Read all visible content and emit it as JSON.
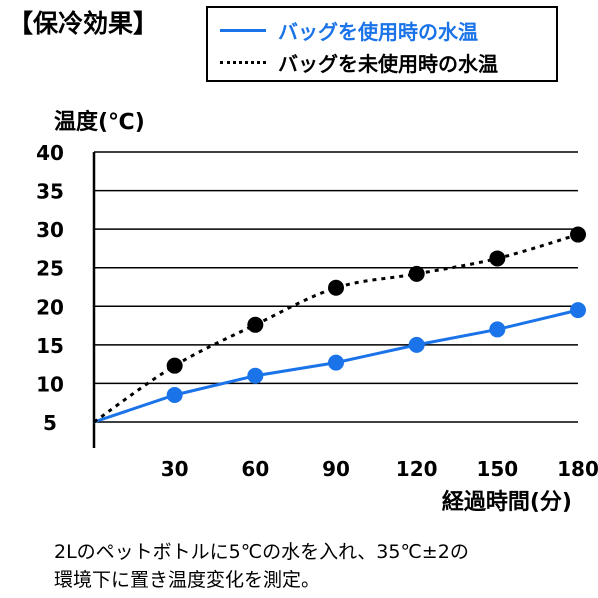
{
  "title": "【保冷効果】",
  "note": {
    "line1": "2Lのペットボトルに5℃の水を入れ、35℃±2の",
    "line2": "環境下に置き温度変化を測定。"
  },
  "colors": {
    "series_with_bag": "#1a73e8",
    "series_without_bag": "#000000",
    "grid": "#000000"
  },
  "chart_data": {
    "type": "line",
    "xlabel": "経過時間(分)",
    "ylabel": "温度(℃)",
    "xlim": [
      0,
      180
    ],
    "ylim": [
      5,
      40
    ],
    "x_ticks": [
      "30",
      "60",
      "90",
      "120",
      "150",
      "180"
    ],
    "y_ticks": [
      "5",
      "10",
      "15",
      "20",
      "25",
      "30",
      "35",
      "40"
    ],
    "grid": true,
    "legend_position": "top-right",
    "x": [
      0,
      30,
      60,
      90,
      120,
      150,
      180
    ],
    "series": [
      {
        "name": "バッグを使用時の水温",
        "style": "solid",
        "values": [
          5,
          8.5,
          11,
          12.7,
          15,
          17,
          19.5
        ]
      },
      {
        "name": "バッグを未使用時の水温",
        "style": "dotted",
        "values": [
          5,
          12.3,
          17.6,
          22.4,
          24.2,
          26.2,
          29.3
        ]
      }
    ]
  }
}
